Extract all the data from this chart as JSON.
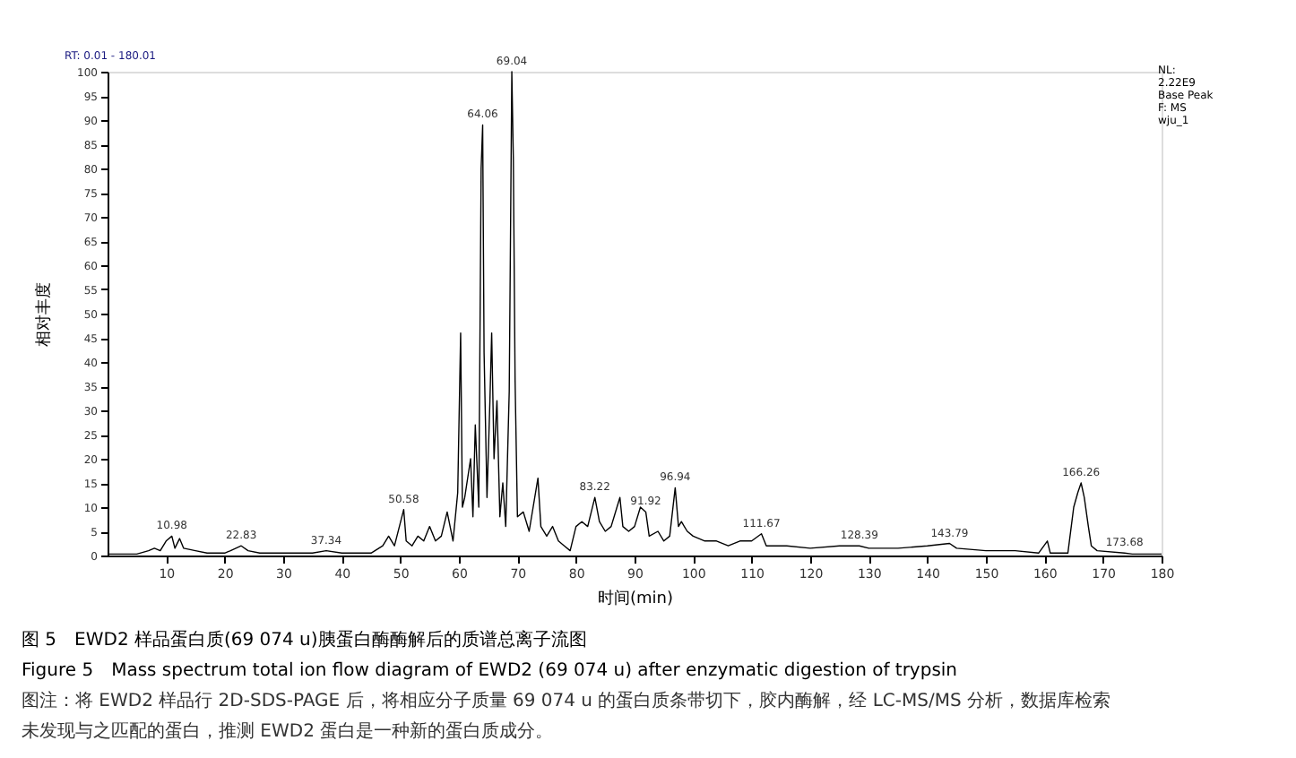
{
  "chart_data": {
    "type": "line",
    "title": "图 5　EWD2 样品蛋白质(69 074 u)胰蛋白酶酶解后的质谱总离子流图",
    "subtitle": "Figure 5　Mass spectrum total ion flow diagram of EWD2 (69 074 u) after enzymatic digestion of trypsin",
    "xlabel": "时间(min)",
    "ylabel": "相对丰度",
    "xlim": [
      0,
      180
    ],
    "xticks": [
      10,
      20,
      30,
      40,
      50,
      60,
      70,
      80,
      90,
      100,
      110,
      120,
      130,
      140,
      150,
      160,
      170,
      180
    ],
    "ylim": [
      0,
      100
    ],
    "yticks": [
      0,
      5,
      10,
      15,
      20,
      25,
      30,
      35,
      40,
      45,
      50,
      55,
      60,
      65,
      70,
      75,
      80,
      85,
      90,
      95,
      100
    ],
    "grid": false,
    "marker": "none",
    "line_style": "solid",
    "series": [
      {
        "color": "#000000",
        "x": [
          0,
          5,
          7,
          8,
          9,
          10,
          10.98,
          11.5,
          12.3,
          13,
          15,
          17,
          20,
          21,
          22.83,
          24,
          26,
          30,
          35,
          37.34,
          40,
          45,
          47,
          48,
          49,
          50.58,
          51,
          52,
          53,
          54,
          55,
          56,
          57,
          58,
          59,
          59.8,
          60.3,
          60.6,
          61,
          62,
          62.4,
          62.8,
          63.4,
          63.8,
          64.06,
          64.3,
          64.8,
          65.3,
          65.6,
          66,
          66.5,
          67,
          67.5,
          68,
          68.6,
          69.04,
          69.3,
          69.6,
          70,
          71,
          72,
          73.5,
          74,
          75,
          76,
          77,
          78,
          79,
          80,
          81,
          82,
          83.22,
          84,
          85,
          86,
          87,
          87.5,
          88,
          89,
          90,
          91,
          91.92,
          92.5,
          94,
          95,
          96,
          96.94,
          97.5,
          98,
          99,
          100,
          102,
          104,
          106,
          108,
          110,
          111.67,
          112.5,
          114,
          116,
          120,
          125,
          128.39,
          130,
          135,
          140,
          143.79,
          145,
          150,
          155,
          159,
          160.5,
          161,
          164,
          165,
          165.7,
          166.26,
          166.8,
          167.5,
          168,
          169,
          173.68,
          175,
          180
        ],
        "values": [
          0.3,
          0.3,
          1,
          1.5,
          1,
          3,
          4,
          1.5,
          3.5,
          1.5,
          1,
          0.5,
          0.5,
          1,
          2,
          1,
          0.5,
          0.5,
          0.5,
          1,
          0.5,
          0.5,
          2,
          4,
          2,
          9.5,
          3,
          2,
          4,
          3,
          6,
          3,
          4,
          9,
          3,
          13,
          46,
          10,
          12,
          20,
          8,
          27,
          10,
          80,
          89,
          42,
          12,
          32,
          46,
          20,
          32,
          8,
          15,
          6,
          34,
          100,
          82,
          36,
          8,
          9,
          5,
          16,
          6,
          4,
          6,
          3,
          2,
          1,
          6,
          7,
          6,
          12,
          7,
          5,
          6,
          10,
          12,
          6,
          5,
          6,
          10,
          9,
          4,
          5,
          3,
          4,
          14,
          6,
          7,
          5,
          4,
          3,
          3,
          2,
          3,
          3,
          4.5,
          2,
          2,
          2,
          1.5,
          2,
          2,
          1.5,
          1.5,
          2,
          2.5,
          1.5,
          1,
          1,
          0.5,
          3,
          0.5,
          0.5,
          10,
          13,
          15,
          12,
          6,
          2,
          1,
          0.5,
          0.3,
          0.3
        ]
      }
    ],
    "annotations": [
      {
        "text": "10.98",
        "x": 10.98,
        "y": 4
      },
      {
        "text": "22.83",
        "x": 22.83,
        "y": 2
      },
      {
        "text": "37.34",
        "x": 37.34,
        "y": 1
      },
      {
        "text": "50.58",
        "x": 50.58,
        "y": 9.5
      },
      {
        "text": "64.06",
        "x": 64.06,
        "y": 89
      },
      {
        "text": "69.04",
        "x": 69.04,
        "y": 100
      },
      {
        "text": "83.22",
        "x": 83.22,
        "y": 12
      },
      {
        "text": "91.92",
        "x": 91.92,
        "y": 9
      },
      {
        "text": "96.94",
        "x": 96.94,
        "y": 14
      },
      {
        "text": "111.67",
        "x": 111.67,
        "y": 4.5
      },
      {
        "text": "128.39",
        "x": 128.39,
        "y": 2
      },
      {
        "text": "143.79",
        "x": 143.79,
        "y": 2.5
      },
      {
        "text": "166.26",
        "x": 166.26,
        "y": 15
      },
      {
        "text": "173.68",
        "x": 173.68,
        "y": 0.5
      },
      "RT: 0.01 - 180.01",
      "NL:\n2.22E9\nBase Peak\nF: MS\nwju_1",
      "图注：将 EWD2 样品行 2D-SDS-PAGE 后，将相应分子质量 69 074 u 的蛋白质条带切下，胶内酶解，经 LC-MS/MS 分析，数据库检索未发现与之匹配的蛋白，推测 EWD2 蛋白是一种新的蛋白质成分。"
    ]
  }
}
